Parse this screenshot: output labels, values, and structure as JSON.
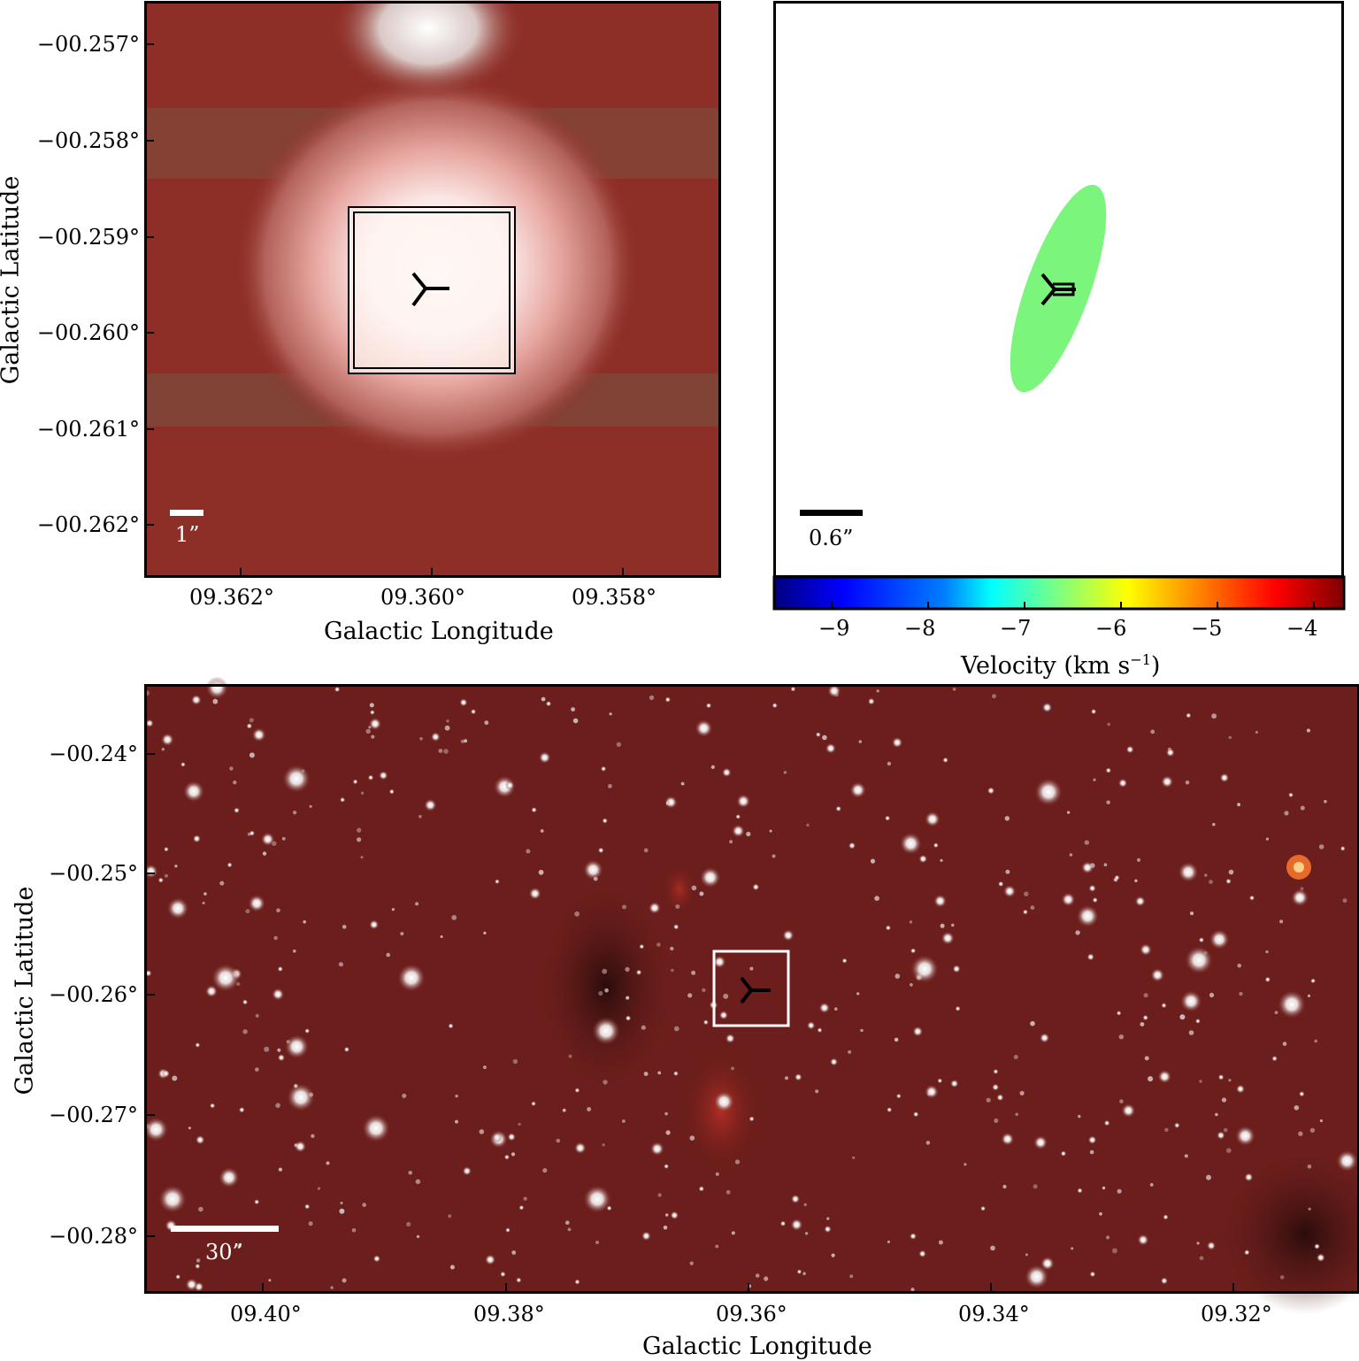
{
  "zoom_panel": {
    "ylabel": "Galactic Latitude",
    "xlabel": "Galactic Longitude",
    "yticks": [
      "−00.257°",
      "−00.258°",
      "−00.259°",
      "−00.260°",
      "−00.261°",
      "−00.262°"
    ],
    "xticks": [
      "09.362°",
      "09.360°",
      "09.358°"
    ],
    "scalebar_label": "1”"
  },
  "velocity_panel": {
    "scalebar_label": "0.6”",
    "colorbar_ticks": [
      "−9",
      "−8",
      "−7",
      "−6",
      "−5",
      "−4"
    ],
    "colorbar_label": "Velocity (km s",
    "colorbar_label_sup": "−1",
    "colorbar_label_end": ")",
    "colorbar_range": [
      -9.4,
      -3.5
    ],
    "source_velocity": -6.0,
    "source_color": "#7cf57c",
    "colormap": [
      "#00007f",
      "#0000ff",
      "#007fff",
      "#00ffff",
      "#7fff7f",
      "#ffff00",
      "#ff7f00",
      "#ff0000",
      "#7f0000"
    ]
  },
  "wide_panel": {
    "ylabel": "Galactic Latitude",
    "xlabel": "Galactic Longitude",
    "yticks": [
      "−00.24°",
      "−00.25°",
      "−00.26°",
      "−00.27°",
      "−00.28°"
    ],
    "xticks": [
      "09.40°",
      "09.38°",
      "09.36°",
      "09.34°",
      "09.32°"
    ],
    "scalebar_label": "30”"
  }
}
